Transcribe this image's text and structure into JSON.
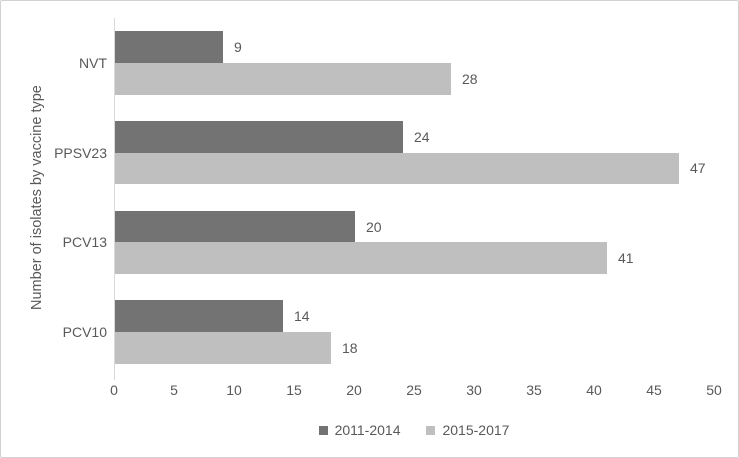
{
  "chart_data": {
    "type": "bar",
    "orientation": "horizontal",
    "categories": [
      "NVT",
      "PPSV23",
      "PCV13",
      "PCV10"
    ],
    "series": [
      {
        "name": "2011-2014",
        "color": "#737373",
        "values": [
          9,
          24,
          20,
          14
        ]
      },
      {
        "name": "2015-2017",
        "color": "#bfbfbf",
        "values": [
          28,
          47,
          41,
          18
        ]
      }
    ],
    "title": "",
    "xlabel": "",
    "ylabel": "Number of isolates by vaccine type",
    "xlim": [
      0,
      50
    ],
    "xticks": [
      0,
      5,
      10,
      15,
      20,
      25,
      30,
      35,
      40,
      45,
      50
    ],
    "data_labels": true,
    "grid": false,
    "legend_position": "bottom"
  },
  "colors": {
    "text": "#595959",
    "axis_line": "#d9d9d9",
    "frame_border": "#d2d2d2",
    "background": "#ffffff"
  }
}
